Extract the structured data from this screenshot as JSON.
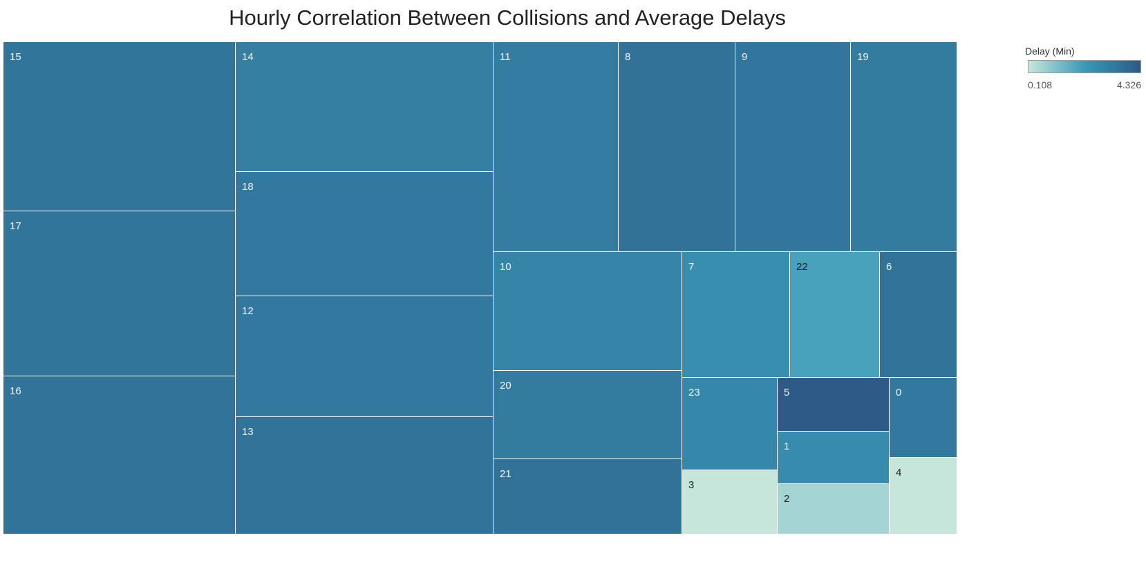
{
  "chart_data": {
    "type": "treemap",
    "title": "Hourly Correlation Between Collisions and Average Delays",
    "color_legend": {
      "title": "Delay (Min)",
      "min": 0.108,
      "max": 4.326,
      "min_label": "0.108",
      "max_label": "4.326",
      "colors": [
        "#c6e6dc",
        "#3a9ab8",
        "#2d5a87"
      ]
    },
    "cells": [
      {
        "label": "15",
        "delay": 3.45
      },
      {
        "label": "17",
        "delay": 3.45
      },
      {
        "label": "16",
        "delay": 3.5
      },
      {
        "label": "14",
        "delay": 3.1
      },
      {
        "label": "18",
        "delay": 3.35
      },
      {
        "label": "12",
        "delay": 3.3
      },
      {
        "label": "13",
        "delay": 3.5
      },
      {
        "label": "11",
        "delay": 3.2
      },
      {
        "label": "8",
        "delay": 3.55
      },
      {
        "label": "9",
        "delay": 3.4
      },
      {
        "label": "19",
        "delay": 3.25
      },
      {
        "label": "10",
        "delay": 2.9
      },
      {
        "label": "20",
        "delay": 3.25
      },
      {
        "label": "21",
        "delay": 3.55
      },
      {
        "label": "7",
        "delay": 2.6
      },
      {
        "label": "22",
        "delay": 2.0
      },
      {
        "label": "6",
        "delay": 3.5
      },
      {
        "label": "23",
        "delay": 2.8
      },
      {
        "label": "5",
        "delay": 4.326
      },
      {
        "label": "0",
        "delay": 3.3
      },
      {
        "label": "1",
        "delay": 2.7
      },
      {
        "label": "2",
        "delay": 0.6
      },
      {
        "label": "3",
        "delay": 0.108
      },
      {
        "label": "4",
        "delay": 0.108
      }
    ]
  }
}
